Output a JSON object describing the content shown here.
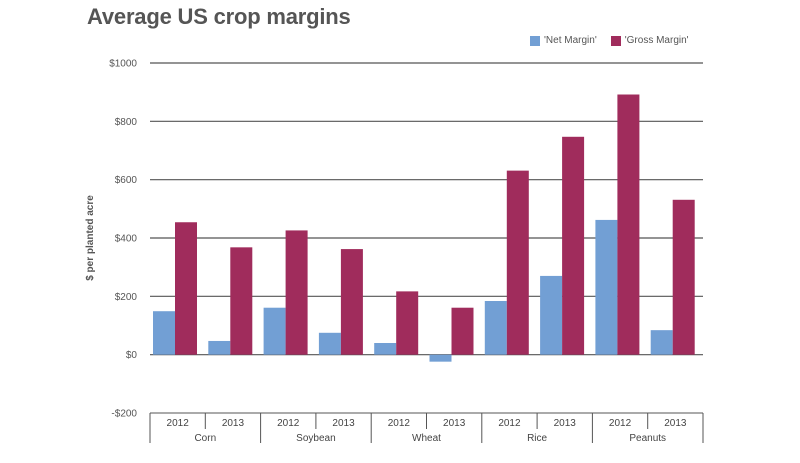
{
  "chart_data": {
    "type": "bar",
    "title": "Average US crop margins",
    "xlabel": "",
    "ylabel": "$ per planted acre",
    "ylim": [
      -200,
      1000
    ],
    "yticks": [
      1000,
      800,
      600,
      400,
      200,
      0,
      -200
    ],
    "ytick_labels": [
      "$1000",
      "$800",
      "$600",
      "$400",
      "$200",
      "$0",
      "-$200"
    ],
    "grid": true,
    "legend_position": "top-right",
    "groups": [
      "Corn",
      "Soybean",
      "Wheat",
      "Rice",
      "Peanuts"
    ],
    "years": [
      "2012",
      "2013"
    ],
    "categories": [
      "Corn 2012",
      "Corn 2013",
      "Soybean 2012",
      "Soybean 2013",
      "Wheat 2012",
      "Wheat 2013",
      "Rice 2012",
      "Rice 2013",
      "Peanuts 2012",
      "Peanuts 2013"
    ],
    "series": [
      {
        "name": "'Net Margin'",
        "color": "#729fd4",
        "values": [
          149,
          47,
          161,
          75,
          40,
          -24,
          184,
          270,
          462,
          84
        ]
      },
      {
        "name": "'Gross Margin'",
        "color": "#a02c5c",
        "values": [
          454,
          368,
          426,
          362,
          217,
          161,
          631,
          747,
          892,
          531
        ]
      }
    ]
  }
}
